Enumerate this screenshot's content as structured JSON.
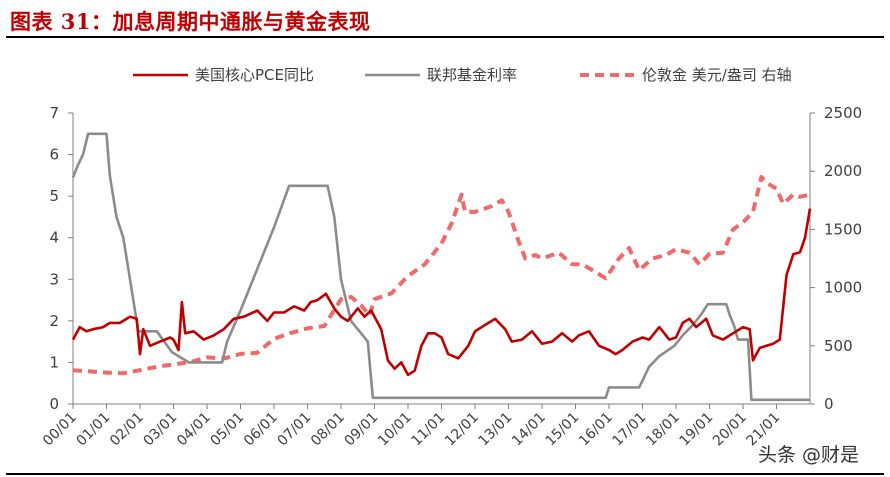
{
  "header": {
    "title": "图表 31：加息周期中通胀与黄金表现"
  },
  "watermark": "头条 @财是",
  "chart_data": {
    "type": "line",
    "title": "",
    "xlabel": "",
    "ylabel_left": "",
    "ylabel_right": "",
    "x_ticks": [
      "00/01",
      "01/01",
      "02/01",
      "03/01",
      "04/01",
      "05/01",
      "06/01",
      "07/01",
      "08/01",
      "09/01",
      "10/01",
      "11/01",
      "12/01",
      "13/01",
      "14/01",
      "15/01",
      "16/01",
      "17/01",
      "18/01",
      "19/01",
      "20/01",
      "21/01"
    ],
    "x_range": [
      2000.0,
      2022.0
    ],
    "ylim_left": [
      0,
      7
    ],
    "ylim_right": [
      0,
      2500
    ],
    "yticks_left": [
      "0",
      "1",
      "2",
      "3",
      "4",
      "5",
      "6",
      "7"
    ],
    "yticks_right": [
      "0",
      "500",
      "1000",
      "1500",
      "2000",
      "2500"
    ],
    "grid": false,
    "legend_position": "top",
    "series": [
      {
        "name": "美国核心PCE同比",
        "axis": "left",
        "color": "#c00000",
        "style": "solid",
        "points": [
          [
            2000.0,
            1.55
          ],
          [
            2000.2,
            1.85
          ],
          [
            2000.4,
            1.75
          ],
          [
            2000.6,
            1.8
          ],
          [
            2000.9,
            1.85
          ],
          [
            2001.1,
            1.95
          ],
          [
            2001.4,
            1.95
          ],
          [
            2001.7,
            2.1
          ],
          [
            2001.9,
            2.05
          ],
          [
            2002.0,
            1.2
          ],
          [
            2002.1,
            1.8
          ],
          [
            2002.3,
            1.4
          ],
          [
            2002.6,
            1.5
          ],
          [
            2002.9,
            1.6
          ],
          [
            2003.0,
            1.55
          ],
          [
            2003.15,
            1.3
          ],
          [
            2003.25,
            2.45
          ],
          [
            2003.35,
            1.7
          ],
          [
            2003.6,
            1.75
          ],
          [
            2003.9,
            1.55
          ],
          [
            2004.2,
            1.65
          ],
          [
            2004.5,
            1.8
          ],
          [
            2004.8,
            2.05
          ],
          [
            2005.1,
            2.1
          ],
          [
            2005.5,
            2.25
          ],
          [
            2005.8,
            2.0
          ],
          [
            2006.0,
            2.2
          ],
          [
            2006.3,
            2.2
          ],
          [
            2006.6,
            2.35
          ],
          [
            2006.9,
            2.25
          ],
          [
            2007.1,
            2.45
          ],
          [
            2007.3,
            2.5
          ],
          [
            2007.55,
            2.65
          ],
          [
            2007.8,
            2.3
          ],
          [
            2008.0,
            2.1
          ],
          [
            2008.2,
            2.0
          ],
          [
            2008.5,
            2.3
          ],
          [
            2008.7,
            2.1
          ],
          [
            2008.9,
            2.25
          ],
          [
            2009.1,
            1.95
          ],
          [
            2009.2,
            1.8
          ],
          [
            2009.4,
            1.05
          ],
          [
            2009.6,
            0.85
          ],
          [
            2009.8,
            1.0
          ],
          [
            2010.0,
            0.7
          ],
          [
            2010.2,
            0.8
          ],
          [
            2010.4,
            1.4
          ],
          [
            2010.6,
            1.7
          ],
          [
            2010.8,
            1.7
          ],
          [
            2011.0,
            1.6
          ],
          [
            2011.2,
            1.2
          ],
          [
            2011.5,
            1.1
          ],
          [
            2011.8,
            1.4
          ],
          [
            2012.0,
            1.75
          ],
          [
            2012.3,
            1.9
          ],
          [
            2012.6,
            2.05
          ],
          [
            2012.9,
            1.8
          ],
          [
            2013.1,
            1.5
          ],
          [
            2013.4,
            1.55
          ],
          [
            2013.7,
            1.75
          ],
          [
            2014.0,
            1.45
          ],
          [
            2014.3,
            1.5
          ],
          [
            2014.6,
            1.7
          ],
          [
            2014.9,
            1.5
          ],
          [
            2015.1,
            1.65
          ],
          [
            2015.4,
            1.75
          ],
          [
            2015.7,
            1.4
          ],
          [
            2016.0,
            1.3
          ],
          [
            2016.2,
            1.2
          ],
          [
            2016.4,
            1.3
          ],
          [
            2016.7,
            1.5
          ],
          [
            2017.0,
            1.6
          ],
          [
            2017.2,
            1.55
          ],
          [
            2017.5,
            1.85
          ],
          [
            2017.8,
            1.55
          ],
          [
            2018.0,
            1.6
          ],
          [
            2018.2,
            1.95
          ],
          [
            2018.4,
            2.05
          ],
          [
            2018.6,
            1.85
          ],
          [
            2018.9,
            2.05
          ],
          [
            2019.1,
            1.65
          ],
          [
            2019.4,
            1.55
          ],
          [
            2019.7,
            1.7
          ],
          [
            2020.0,
            1.85
          ],
          [
            2020.2,
            1.8
          ],
          [
            2020.3,
            1.05
          ],
          [
            2020.5,
            1.35
          ],
          [
            2020.7,
            1.4
          ],
          [
            2020.9,
            1.45
          ],
          [
            2021.1,
            1.55
          ],
          [
            2021.3,
            3.1
          ],
          [
            2021.5,
            3.6
          ],
          [
            2021.7,
            3.65
          ],
          [
            2021.85,
            4.0
          ],
          [
            2022.0,
            4.7
          ]
        ]
      },
      {
        "name": "联邦基金利率",
        "axis": "left",
        "color": "#8c8c8c",
        "style": "solid",
        "points": [
          [
            2000.0,
            5.45
          ],
          [
            2000.15,
            5.75
          ],
          [
            2000.3,
            6.0
          ],
          [
            2000.45,
            6.5
          ],
          [
            2001.0,
            6.5
          ],
          [
            2001.1,
            5.5
          ],
          [
            2001.3,
            4.5
          ],
          [
            2001.5,
            4.0
          ],
          [
            2001.7,
            3.0
          ],
          [
            2001.95,
            1.75
          ],
          [
            2002.5,
            1.75
          ],
          [
            2002.95,
            1.25
          ],
          [
            2003.45,
            1.0
          ],
          [
            2004.45,
            1.0
          ],
          [
            2004.6,
            1.5
          ],
          [
            2005.0,
            2.25
          ],
          [
            2005.5,
            3.25
          ],
          [
            2006.0,
            4.25
          ],
          [
            2006.45,
            5.25
          ],
          [
            2007.6,
            5.25
          ],
          [
            2007.8,
            4.5
          ],
          [
            2008.0,
            3.0
          ],
          [
            2008.3,
            2.0
          ],
          [
            2008.8,
            1.5
          ],
          [
            2008.95,
            0.15
          ],
          [
            2015.9,
            0.15
          ],
          [
            2016.0,
            0.4
          ],
          [
            2016.9,
            0.4
          ],
          [
            2017.2,
            0.9
          ],
          [
            2017.5,
            1.15
          ],
          [
            2017.95,
            1.4
          ],
          [
            2018.2,
            1.65
          ],
          [
            2018.5,
            1.9
          ],
          [
            2018.75,
            2.15
          ],
          [
            2018.95,
            2.4
          ],
          [
            2019.5,
            2.4
          ],
          [
            2019.6,
            2.15
          ],
          [
            2019.75,
            1.85
          ],
          [
            2019.85,
            1.55
          ],
          [
            2020.15,
            1.55
          ],
          [
            2020.25,
            0.1
          ],
          [
            2022.0,
            0.1
          ]
        ]
      },
      {
        "name": "伦敦金 美元/盎司 右轴",
        "axis": "right",
        "color": "#f06a6a",
        "style": "dashed",
        "points": [
          [
            2000.0,
            290
          ],
          [
            2000.5,
            280
          ],
          [
            2001.0,
            270
          ],
          [
            2001.5,
            265
          ],
          [
            2002.0,
            290
          ],
          [
            2002.5,
            320
          ],
          [
            2003.0,
            340
          ],
          [
            2003.5,
            360
          ],
          [
            2004.0,
            400
          ],
          [
            2004.5,
            390
          ],
          [
            2005.0,
            430
          ],
          [
            2005.5,
            440
          ],
          [
            2006.0,
            560
          ],
          [
            2006.5,
            610
          ],
          [
            2007.0,
            650
          ],
          [
            2007.5,
            670
          ],
          [
            2008.0,
            900
          ],
          [
            2008.3,
            920
          ],
          [
            2008.6,
            850
          ],
          [
            2008.85,
            760
          ],
          [
            2009.0,
            900
          ],
          [
            2009.5,
            950
          ],
          [
            2010.0,
            1100
          ],
          [
            2010.5,
            1200
          ],
          [
            2011.0,
            1380
          ],
          [
            2011.3,
            1550
          ],
          [
            2011.6,
            1800
          ],
          [
            2011.7,
            1650
          ],
          [
            2012.0,
            1650
          ],
          [
            2012.5,
            1700
          ],
          [
            2012.8,
            1750
          ],
          [
            2013.0,
            1650
          ],
          [
            2013.3,
            1400
          ],
          [
            2013.5,
            1250
          ],
          [
            2013.8,
            1280
          ],
          [
            2014.0,
            1250
          ],
          [
            2014.5,
            1300
          ],
          [
            2014.9,
            1200
          ],
          [
            2015.2,
            1200
          ],
          [
            2015.5,
            1150
          ],
          [
            2015.9,
            1080
          ],
          [
            2016.3,
            1250
          ],
          [
            2016.6,
            1340
          ],
          [
            2016.9,
            1150
          ],
          [
            2017.3,
            1250
          ],
          [
            2017.7,
            1280
          ],
          [
            2018.0,
            1330
          ],
          [
            2018.4,
            1300
          ],
          [
            2018.7,
            1200
          ],
          [
            2019.0,
            1290
          ],
          [
            2019.4,
            1300
          ],
          [
            2019.7,
            1500
          ],
          [
            2020.0,
            1560
          ],
          [
            2020.3,
            1650
          ],
          [
            2020.55,
            1950
          ],
          [
            2020.7,
            1900
          ],
          [
            2021.0,
            1850
          ],
          [
            2021.2,
            1720
          ],
          [
            2021.5,
            1800
          ],
          [
            2021.7,
            1780
          ],
          [
            2022.0,
            1800
          ]
        ]
      }
    ]
  }
}
